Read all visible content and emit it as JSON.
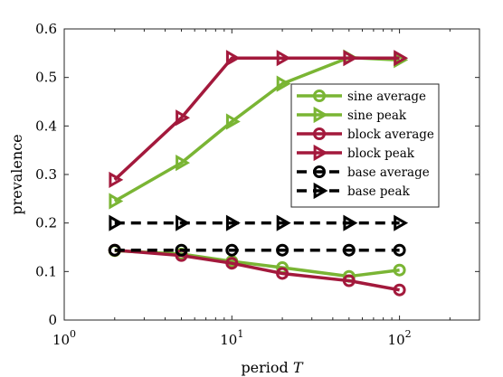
{
  "chart_data": {
    "type": "line",
    "title": "",
    "xlabel": "period",
    "xlabel_var": "T",
    "ylabel": "prevalence",
    "xscale": "log",
    "xlim": [
      1,
      300
    ],
    "ylim": [
      0,
      0.6
    ],
    "x_ticks": [
      1,
      10,
      100
    ],
    "x_tick_labels": [
      {
        "base": "10",
        "exp": "0"
      },
      {
        "base": "10",
        "exp": "1"
      },
      {
        "base": "10",
        "exp": "2"
      }
    ],
    "y_ticks": [
      0,
      0.1,
      0.2,
      0.3,
      0.4,
      0.5,
      0.6
    ],
    "y_tick_labels": [
      "0",
      "0.1",
      "0.2",
      "0.3",
      "0.4",
      "0.5",
      "0.6"
    ],
    "grid": false,
    "legend_position": "right",
    "x": [
      2,
      5,
      10,
      20,
      50,
      100
    ],
    "series": [
      {
        "name": "sine average",
        "color": "#7ab534",
        "dash": "solid",
        "marker": "circle",
        "values": [
          0.143,
          0.136,
          0.121,
          0.108,
          0.09,
          0.103
        ]
      },
      {
        "name": "sine peak",
        "color": "#7ab534",
        "dash": "solid",
        "marker": "triangle-right",
        "values": [
          0.245,
          0.324,
          0.409,
          0.487,
          0.541,
          0.536
        ]
      },
      {
        "name": "block average",
        "color": "#a3193c",
        "dash": "solid",
        "marker": "circle",
        "values": [
          0.144,
          0.133,
          0.117,
          0.096,
          0.081,
          0.062
        ]
      },
      {
        "name": "block peak",
        "color": "#a3193c",
        "dash": "solid",
        "marker": "triangle-right",
        "values": [
          0.289,
          0.417,
          0.54,
          0.54,
          0.54,
          0.54
        ]
      },
      {
        "name": "base average",
        "color": "#000000",
        "dash": "dashed",
        "marker": "circle",
        "values": [
          0.144,
          0.144,
          0.144,
          0.144,
          0.144,
          0.144
        ]
      },
      {
        "name": "base peak",
        "color": "#000000",
        "dash": "dashed",
        "marker": "triangle-right",
        "values": [
          0.2,
          0.2,
          0.2,
          0.2,
          0.2,
          0.2
        ]
      }
    ]
  }
}
